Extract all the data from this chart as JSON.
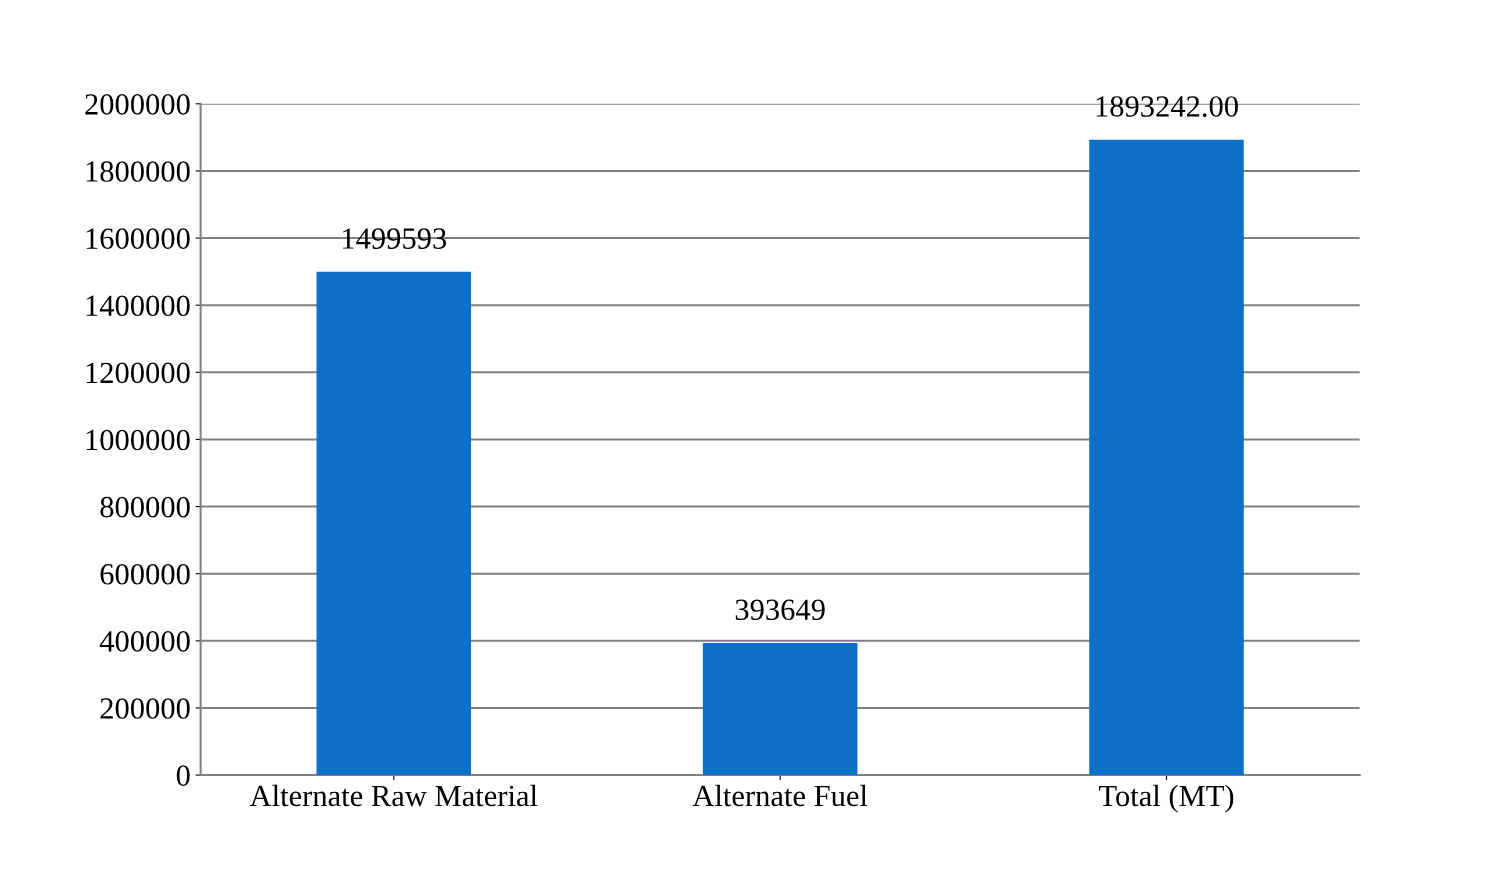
{
  "chart_data": {
    "type": "bar",
    "categories": [
      "Alternate Raw Material",
      "Alternate Fuel",
      "Total (MT)"
    ],
    "values": [
      1499593,
      393649,
      1893242
    ],
    "value_labels": [
      "1499593",
      "393649",
      "1893242.00"
    ],
    "color": "#0e70c8",
    "ylim": [
      0,
      2000000
    ],
    "yticks": [
      0,
      200000,
      400000,
      600000,
      800000,
      1000000,
      1200000,
      1400000,
      1600000,
      1800000,
      2000000
    ],
    "grid": "y",
    "legend": false
  }
}
